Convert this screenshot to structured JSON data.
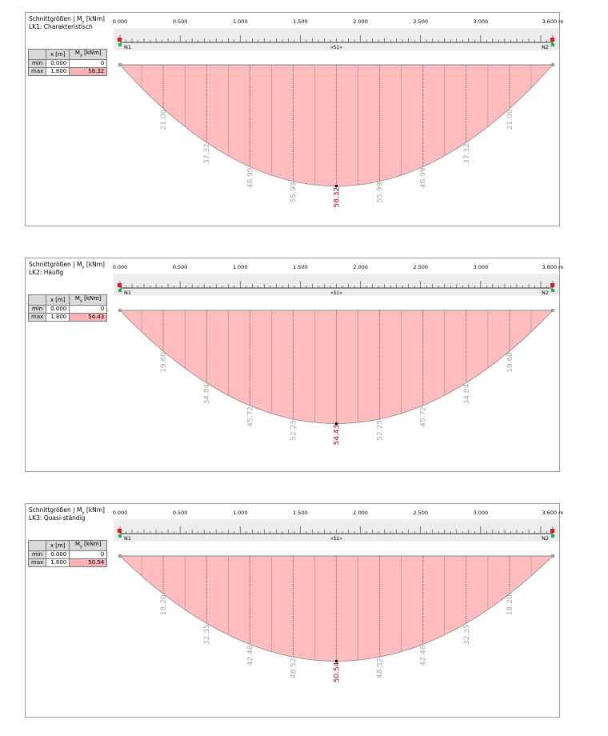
{
  "colors": {
    "fill": "#ffbcbf",
    "outline": "#8a8a8a",
    "max_label": "#c0001a",
    "label": "#a6a6a6",
    "ruler_bg": "#ececec"
  },
  "ruler": {
    "ticks": [
      "0.000",
      "0.500",
      "1.000",
      "1.500",
      "2.000",
      "2.500",
      "3.000",
      "3.600 m"
    ],
    "node_left": "N1",
    "node_right": "N2",
    "member": "»S1»"
  },
  "table_headers": {
    "x": "x [m]",
    "m_main": "M",
    "m_sub": "y",
    "m_unit": "[kNm]"
  },
  "panels": [
    {
      "title_main": "Schnittgrößen | M",
      "title_sub": "y",
      "title_unit": "[kNm]",
      "load_case": "LK1: Charakteristisch",
      "min": {
        "label": "min",
        "x": "0.000",
        "value": "0"
      },
      "max": {
        "label": "max",
        "x": "1.800",
        "value": "58.32"
      }
    },
    {
      "title_main": "Schnittgrößen | M",
      "title_sub": "y",
      "title_unit": "[kNm]",
      "load_case": "LK2: Häufig",
      "min": {
        "label": "min",
        "x": "0.000",
        "value": "0"
      },
      "max": {
        "label": "max",
        "x": "1.800",
        "value": "54.43"
      }
    },
    {
      "title_main": "Schnittgrößen | M",
      "title_sub": "y",
      "title_unit": "[kNm]",
      "load_case": "LK3: Quasi-ständig",
      "min": {
        "label": "min",
        "x": "0.000",
        "value": "0"
      },
      "max": {
        "label": "max",
        "x": "1.800",
        "value": "50.54"
      }
    }
  ],
  "chart_data": [
    {
      "type": "area",
      "title": "LK1: Charakteristisch",
      "xlim": [
        0,
        3.6
      ],
      "x": [
        0.36,
        0.72,
        1.08,
        1.44,
        1.8,
        2.16,
        2.52,
        2.88,
        3.24
      ],
      "y": [
        21.0,
        37.32,
        48.99,
        55.99,
        58.32,
        55.99,
        48.99,
        37.32,
        21.0
      ],
      "labels": [
        "21.00",
        "37.32",
        "48.99",
        "55.99",
        "58.32",
        "55.99",
        "48.99",
        "37.32",
        "21.00"
      ],
      "max_index": 4
    },
    {
      "type": "area",
      "title": "LK2: Häufig",
      "xlim": [
        0,
        3.6
      ],
      "x": [
        0.36,
        0.72,
        1.08,
        1.44,
        1.8,
        2.16,
        2.52,
        2.88,
        3.24
      ],
      "y": [
        19.6,
        34.84,
        45.72,
        52.25,
        54.43,
        52.25,
        45.72,
        34.84,
        19.6
      ],
      "labels": [
        "19.60",
        "34.84",
        "45.72",
        "52.25",
        "54.43",
        "52.25",
        "45.72",
        "34.84",
        "19.60"
      ],
      "max_index": 4
    },
    {
      "type": "area",
      "title": "LK3: Quasi-ständig",
      "xlim": [
        0,
        3.6
      ],
      "x": [
        0.36,
        0.72,
        1.08,
        1.44,
        1.8,
        2.16,
        2.52,
        2.88,
        3.24
      ],
      "y": [
        18.2,
        32.35,
        42.46,
        48.52,
        50.54,
        48.52,
        42.46,
        32.35,
        18.2
      ],
      "labels": [
        "18.20",
        "32.35",
        "42.46",
        "48.52",
        "50.54",
        "48.52",
        "42.46",
        "32.35",
        "18.20"
      ],
      "max_index": 4
    }
  ]
}
